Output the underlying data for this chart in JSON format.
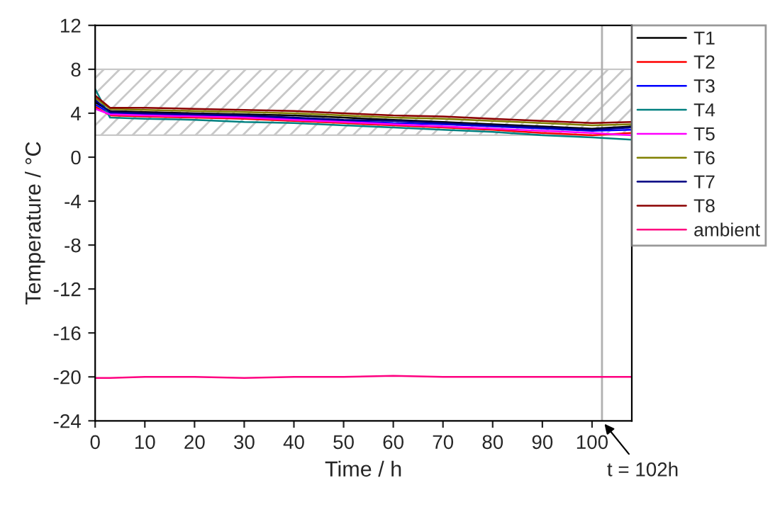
{
  "chart_data": {
    "type": "line",
    "xlabel": "Time / h",
    "ylabel": "Temperature / °C",
    "x": [
      0,
      3,
      10,
      20,
      30,
      40,
      50,
      60,
      70,
      80,
      90,
      100,
      108
    ],
    "series": [
      {
        "name": "T1",
        "color": "#000000",
        "values": [
          5.0,
          4.2,
          4.1,
          4.0,
          3.9,
          3.8,
          3.6,
          3.4,
          3.2,
          3.0,
          2.8,
          2.6,
          2.8
        ]
      },
      {
        "name": "T2",
        "color": "#ff0000",
        "values": [
          4.6,
          3.8,
          3.7,
          3.6,
          3.5,
          3.3,
          3.1,
          2.9,
          2.7,
          2.5,
          2.2,
          2.0,
          2.2
        ]
      },
      {
        "name": "T3",
        "color": "#0000ff",
        "values": [
          4.8,
          4.0,
          3.9,
          3.8,
          3.7,
          3.5,
          3.3,
          3.1,
          3.0,
          2.8,
          2.6,
          2.4,
          2.5
        ]
      },
      {
        "name": "T4",
        "color": "#008080",
        "values": [
          6.2,
          3.6,
          3.5,
          3.4,
          3.2,
          3.1,
          2.9,
          2.7,
          2.5,
          2.3,
          2.0,
          1.8,
          1.6
        ]
      },
      {
        "name": "T5",
        "color": "#ff00ff",
        "values": [
          4.4,
          3.9,
          3.8,
          3.7,
          3.6,
          3.4,
          3.2,
          3.0,
          2.8,
          2.6,
          2.4,
          2.2,
          2.0
        ]
      },
      {
        "name": "T6",
        "color": "#808000",
        "values": [
          5.4,
          4.4,
          4.3,
          4.2,
          4.1,
          4.0,
          3.8,
          3.6,
          3.5,
          3.3,
          3.1,
          2.9,
          3.0
        ]
      },
      {
        "name": "T7",
        "color": "#000080",
        "values": [
          5.2,
          4.1,
          4.0,
          3.9,
          3.8,
          3.6,
          3.4,
          3.3,
          3.1,
          2.9,
          2.7,
          2.5,
          2.7
        ]
      },
      {
        "name": "T8",
        "color": "#8b0000",
        "values": [
          5.6,
          4.5,
          4.5,
          4.4,
          4.3,
          4.2,
          4.0,
          3.8,
          3.7,
          3.5,
          3.3,
          3.1,
          3.2
        ]
      },
      {
        "name": "ambient",
        "color": "#ff0080",
        "values": [
          -20.1,
          -20.1,
          -20.0,
          -20.0,
          -20.1,
          -20.0,
          -20.0,
          -19.9,
          -20.0,
          -20.0,
          -20.0,
          -20.0,
          -20.0
        ]
      }
    ],
    "xlim": [
      0,
      108
    ],
    "xticks": [
      0,
      10,
      20,
      30,
      40,
      50,
      60,
      70,
      80,
      90,
      100
    ],
    "ylim": [
      -24,
      12
    ],
    "yticks": [
      -24,
      -20,
      -16,
      -12,
      -8,
      -4,
      0,
      4,
      8,
      12
    ],
    "bands": [
      {
        "axis": "y",
        "from": 2,
        "to": 8,
        "color": "#c8c8c8"
      }
    ],
    "ref_lines": [
      {
        "axis": "x",
        "value": 102,
        "color": "#b0b0b0"
      }
    ],
    "annotations": [
      {
        "text": "t = 102h",
        "x": 102,
        "y": -24
      }
    ],
    "legend": "right",
    "grid": false
  }
}
